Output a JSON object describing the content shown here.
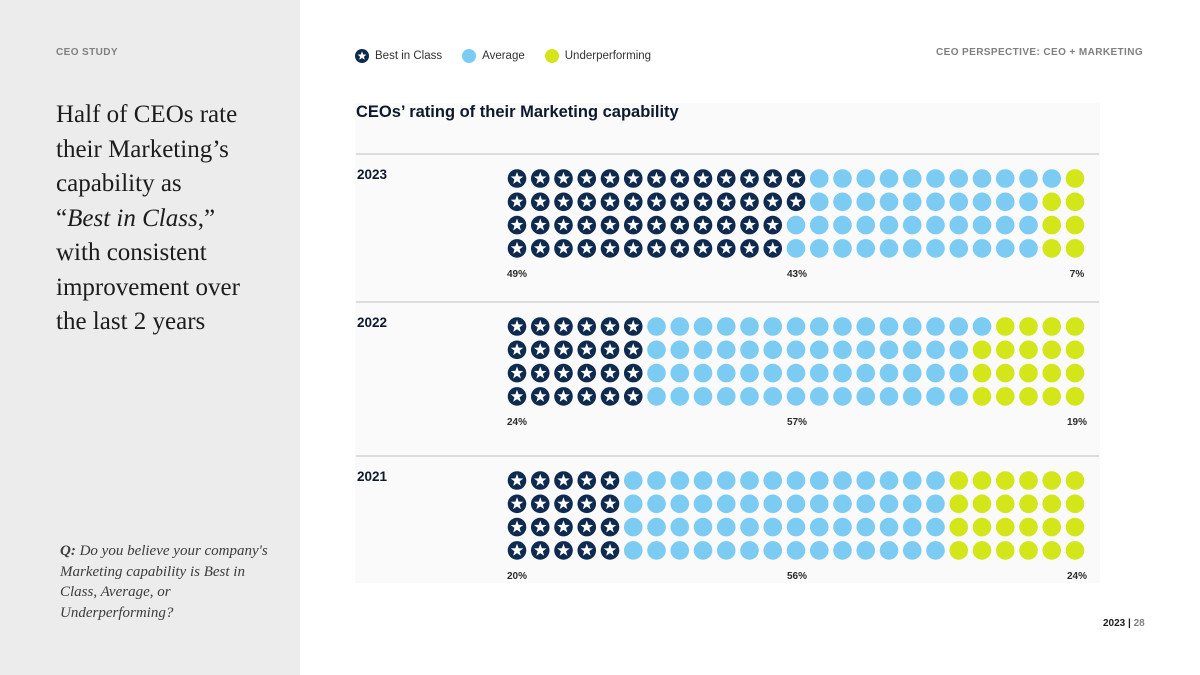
{
  "sidebar": {
    "eyebrow": "CEO STUDY",
    "headline": {
      "part1": "Half of CEOs rate their Marketing’s capability as",
      "quote_open": "“",
      "italic": "Best in Class",
      "quote_close": ",”",
      "part2": "with consistent improvement over the last 2 years"
    },
    "question": {
      "prefix": "Q:",
      "text": "Do you believe your company's Marketing capability is Best in Class, Average, or Underperforming?"
    }
  },
  "header": {
    "right_eyebrow": "CEO PERSPECTIVE: CEO + MARKETING"
  },
  "legend": {
    "items": [
      {
        "label": "Best in Class",
        "icon": "star-circle-icon"
      },
      {
        "label": "Average",
        "icon": "circle-icon"
      },
      {
        "label": "Underperforming",
        "icon": "circle-icon"
      }
    ]
  },
  "colors": {
    "best_in_class": "#0f2a4f",
    "average": "#7ccbf2",
    "underperforming": "#d3e619",
    "divider": "#bdbdbd"
  },
  "chart_data": {
    "type": "waffle",
    "title": "CEOs’ rating of their Marketing capability",
    "grid": {
      "rows": 4,
      "columns": 25
    },
    "categories": [
      "Best in Class",
      "Average",
      "Underperforming"
    ],
    "groups": [
      {
        "year": "2023",
        "values": [
          49,
          43,
          7
        ],
        "labels": [
          "49%",
          "43%",
          "7%"
        ]
      },
      {
        "year": "2022",
        "values": [
          24,
          57,
          19
        ],
        "labels": [
          "24%",
          "57%",
          "19%"
        ]
      },
      {
        "year": "2021",
        "values": [
          20,
          56,
          24
        ],
        "labels": [
          "20%",
          "56%",
          "24%"
        ]
      }
    ]
  },
  "footer": {
    "year": "2023",
    "separator": "|",
    "page": "28"
  }
}
